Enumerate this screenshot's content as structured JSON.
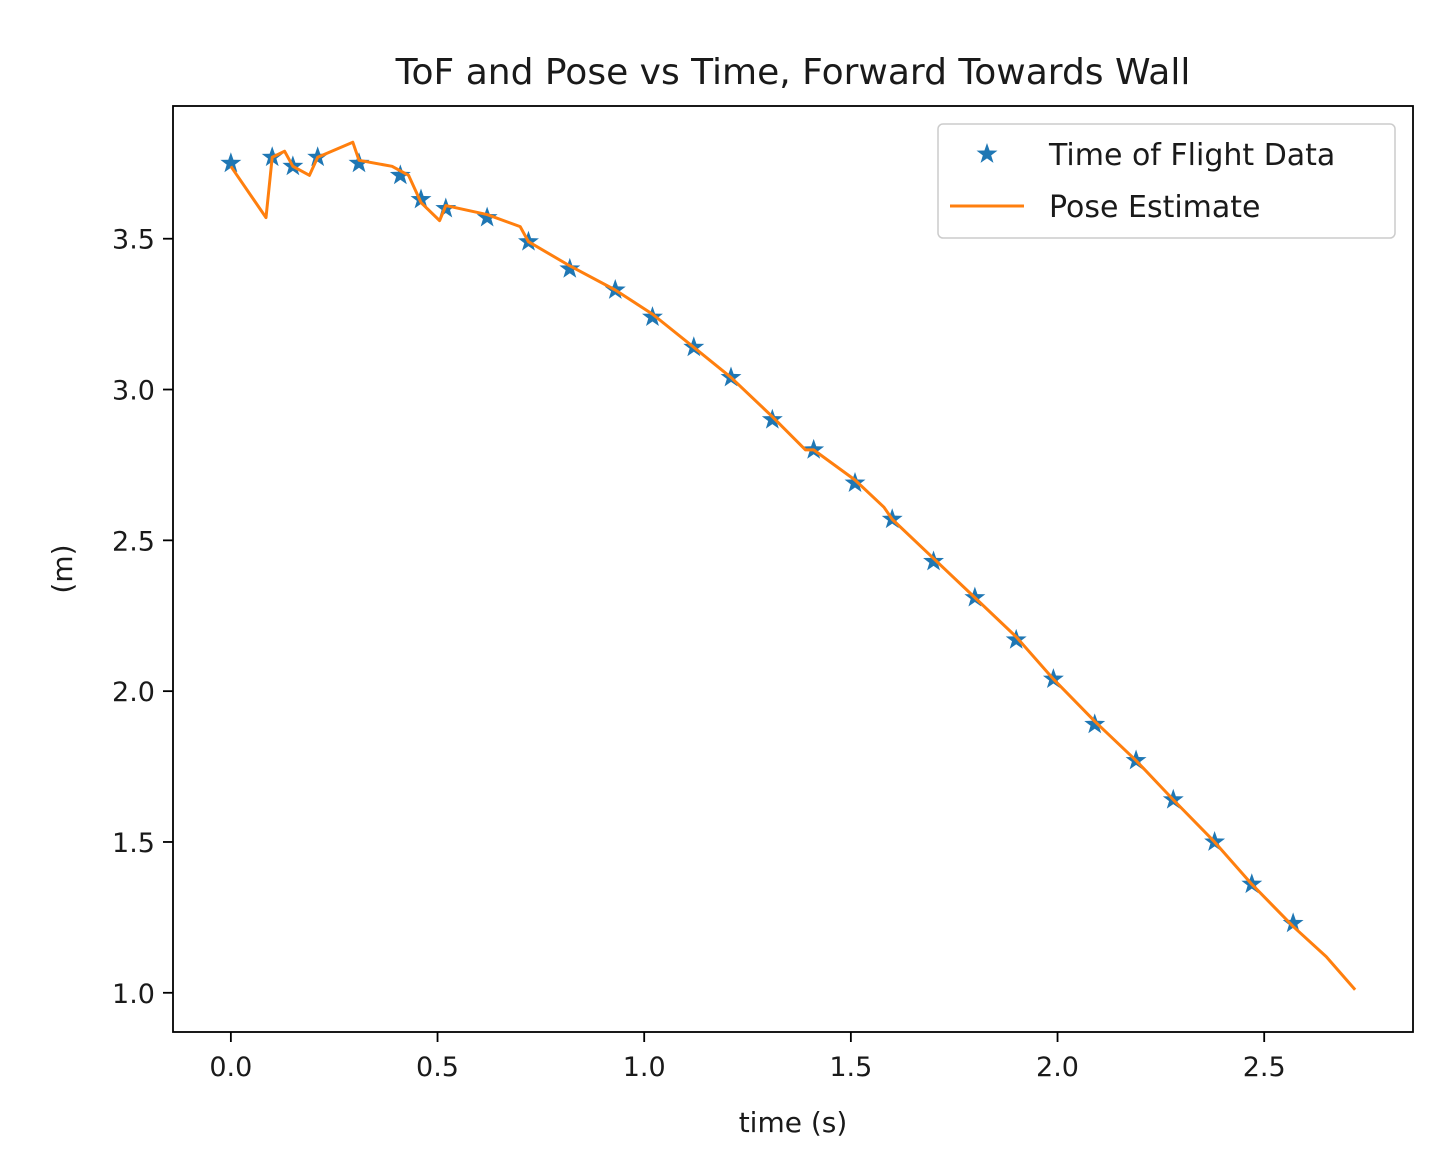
{
  "chart_data": {
    "type": "line",
    "title": "ToF and Pose vs Time, Forward Towards Wall",
    "xlabel": "time (s)",
    "ylabel": "(m)",
    "xlim": [
      -0.14,
      2.86
    ],
    "ylim": [
      0.87,
      3.94
    ],
    "x_ticks": [
      0.0,
      0.5,
      1.0,
      1.5,
      2.0,
      2.5
    ],
    "x_tick_labels": [
      "0.0",
      "0.5",
      "1.0",
      "1.5",
      "2.0",
      "2.5"
    ],
    "y_ticks": [
      1.0,
      1.5,
      2.0,
      2.5,
      3.0,
      3.5
    ],
    "y_tick_labels": [
      "1.0",
      "1.5",
      "2.0",
      "2.5",
      "3.0",
      "3.5"
    ],
    "grid": false,
    "legend_position": "top-right",
    "series": [
      {
        "name": "Time of Flight Data",
        "type": "scatter",
        "marker": "star",
        "color": "#1f77b4",
        "x": [
          0.0,
          0.1,
          0.15,
          0.21,
          0.31,
          0.41,
          0.46,
          0.52,
          0.62,
          0.72,
          0.82,
          0.93,
          1.02,
          1.12,
          1.21,
          1.31,
          1.41,
          1.51,
          1.6,
          1.7,
          1.8,
          1.9,
          1.99,
          2.09,
          2.19,
          2.28,
          2.38,
          2.47,
          2.57
        ],
        "y": [
          3.75,
          3.77,
          3.74,
          3.77,
          3.75,
          3.71,
          3.63,
          3.6,
          3.57,
          3.49,
          3.4,
          3.33,
          3.24,
          3.14,
          3.04,
          2.9,
          2.8,
          2.69,
          2.57,
          2.43,
          2.31,
          2.17,
          2.04,
          1.89,
          1.77,
          1.64,
          1.5,
          1.36,
          1.23
        ]
      },
      {
        "name": "Pose Estimate",
        "type": "line",
        "color": "#ff7f0e",
        "x": [
          0.0,
          0.085,
          0.1,
          0.13,
          0.15,
          0.19,
          0.21,
          0.295,
          0.31,
          0.39,
          0.43,
          0.46,
          0.505,
          0.52,
          0.62,
          0.7,
          0.72,
          0.82,
          0.93,
          1.02,
          1.12,
          1.21,
          1.31,
          1.39,
          1.41,
          1.51,
          1.58,
          1.6,
          1.7,
          1.8,
          1.9,
          1.99,
          2.09,
          2.19,
          2.28,
          2.38,
          2.47,
          2.57,
          2.65,
          2.72
        ],
        "y": [
          3.74,
          3.57,
          3.77,
          3.79,
          3.74,
          3.71,
          3.77,
          3.82,
          3.76,
          3.74,
          3.71,
          3.62,
          3.56,
          3.61,
          3.58,
          3.54,
          3.49,
          3.41,
          3.33,
          3.25,
          3.14,
          3.04,
          2.91,
          2.8,
          2.8,
          2.7,
          2.61,
          2.57,
          2.44,
          2.31,
          2.18,
          2.04,
          1.9,
          1.77,
          1.64,
          1.5,
          1.36,
          1.22,
          1.12,
          1.01
        ]
      }
    ]
  }
}
